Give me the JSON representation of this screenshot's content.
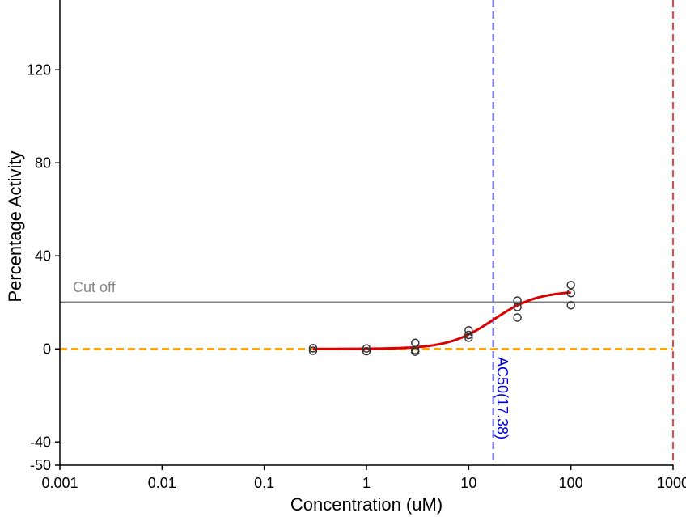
{
  "chart_data": {
    "type": "scatter",
    "xlabel": "Concentration (uM)",
    "ylabel": "Percentage Activity",
    "x_scale": "log",
    "xlim": [
      0.001,
      1000
    ],
    "ylim": [
      -50,
      150
    ],
    "x_ticks": [
      {
        "value": 0.001,
        "label": "0.001"
      },
      {
        "value": 0.01,
        "label": "0.01"
      },
      {
        "value": 0.1,
        "label": "0.1"
      },
      {
        "value": 1,
        "label": "1"
      },
      {
        "value": 10,
        "label": "10"
      },
      {
        "value": 100,
        "label": "100"
      },
      {
        "value": 1000,
        "label": "1000"
      }
    ],
    "y_ticks": [
      {
        "value": -50,
        "label": "-50"
      },
      {
        "value": -40,
        "label": "-40"
      },
      {
        "value": 0,
        "label": "0"
      },
      {
        "value": 40,
        "label": "40"
      },
      {
        "value": 80,
        "label": "80"
      },
      {
        "value": 120,
        "label": "120"
      }
    ],
    "points": [
      {
        "x": 0.3,
        "y": 0.3
      },
      {
        "x": 0.3,
        "y": -0.8
      },
      {
        "x": 1,
        "y": 0.2
      },
      {
        "x": 1,
        "y": -1.0
      },
      {
        "x": 3,
        "y": 2.6
      },
      {
        "x": 3,
        "y": -0.5
      },
      {
        "x": 3,
        "y": -1.2
      },
      {
        "x": 10,
        "y": 8.0
      },
      {
        "x": 10,
        "y": 6.0
      },
      {
        "x": 10,
        "y": 4.8
      },
      {
        "x": 30,
        "y": 20.8
      },
      {
        "x": 30,
        "y": 18.0
      },
      {
        "x": 30,
        "y": 13.5
      },
      {
        "x": 100,
        "y": 27.5
      },
      {
        "x": 100,
        "y": 24.0
      },
      {
        "x": 100,
        "y": 18.8
      }
    ],
    "fit_curve": {
      "model": "hill",
      "bottom": 0,
      "top": 25,
      "ac50": 17.38,
      "hill_slope": 2.0,
      "x_range": [
        0.3,
        100
      ],
      "color": "#dd0000"
    },
    "reference_lines": {
      "cutoff": {
        "y": 20,
        "label": "Cut off",
        "color": "#808080"
      },
      "baseline": {
        "y": 0,
        "color": "#ffa500"
      },
      "ac50": {
        "x": 17.38,
        "label": "AC50(17.38)",
        "color": "#4444dd"
      },
      "max_concentration": {
        "x": 1000,
        "color": "#ee4444"
      }
    },
    "point_color": "#333333"
  }
}
